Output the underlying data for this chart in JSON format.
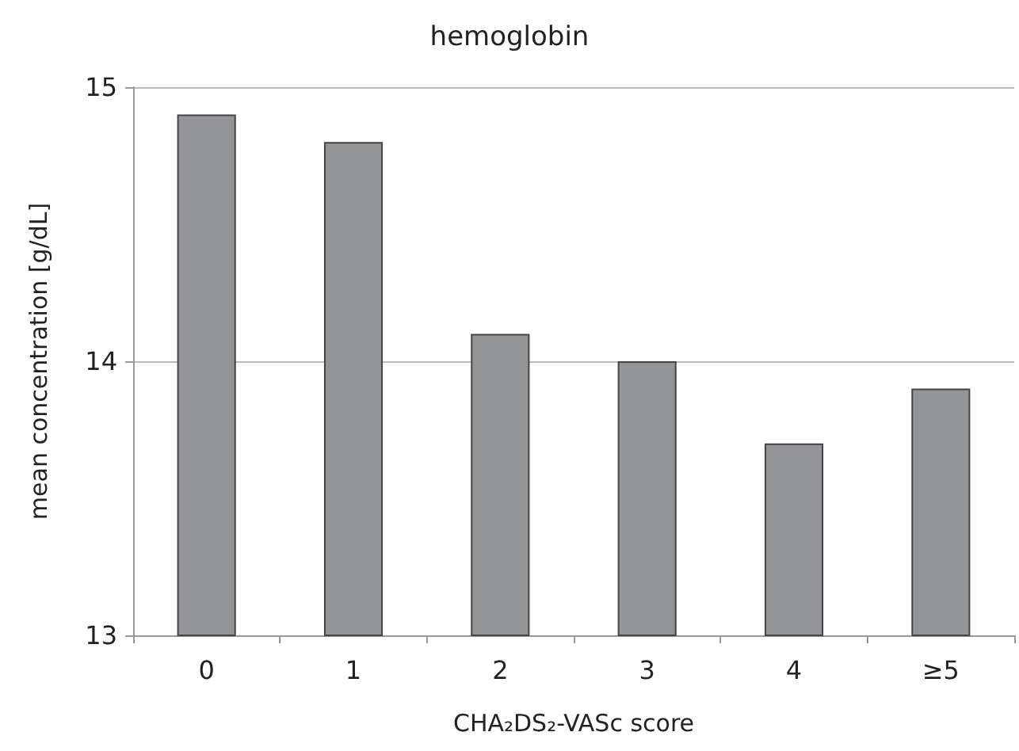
{
  "chart_data": {
    "type": "bar",
    "title": "hemoglobin",
    "xlabel": "CHA₂DS₂-VASc score",
    "ylabel": "mean concentration [g/dL]",
    "categories": [
      "0",
      "1",
      "2",
      "3",
      "4",
      "≥5"
    ],
    "values": [
      14.9,
      14.8,
      14.1,
      14.0,
      13.7,
      13.9
    ],
    "color": "#939598",
    "ylim": [
      13,
      15
    ],
    "yticks": [
      13,
      14,
      15
    ],
    "grid": "y"
  }
}
